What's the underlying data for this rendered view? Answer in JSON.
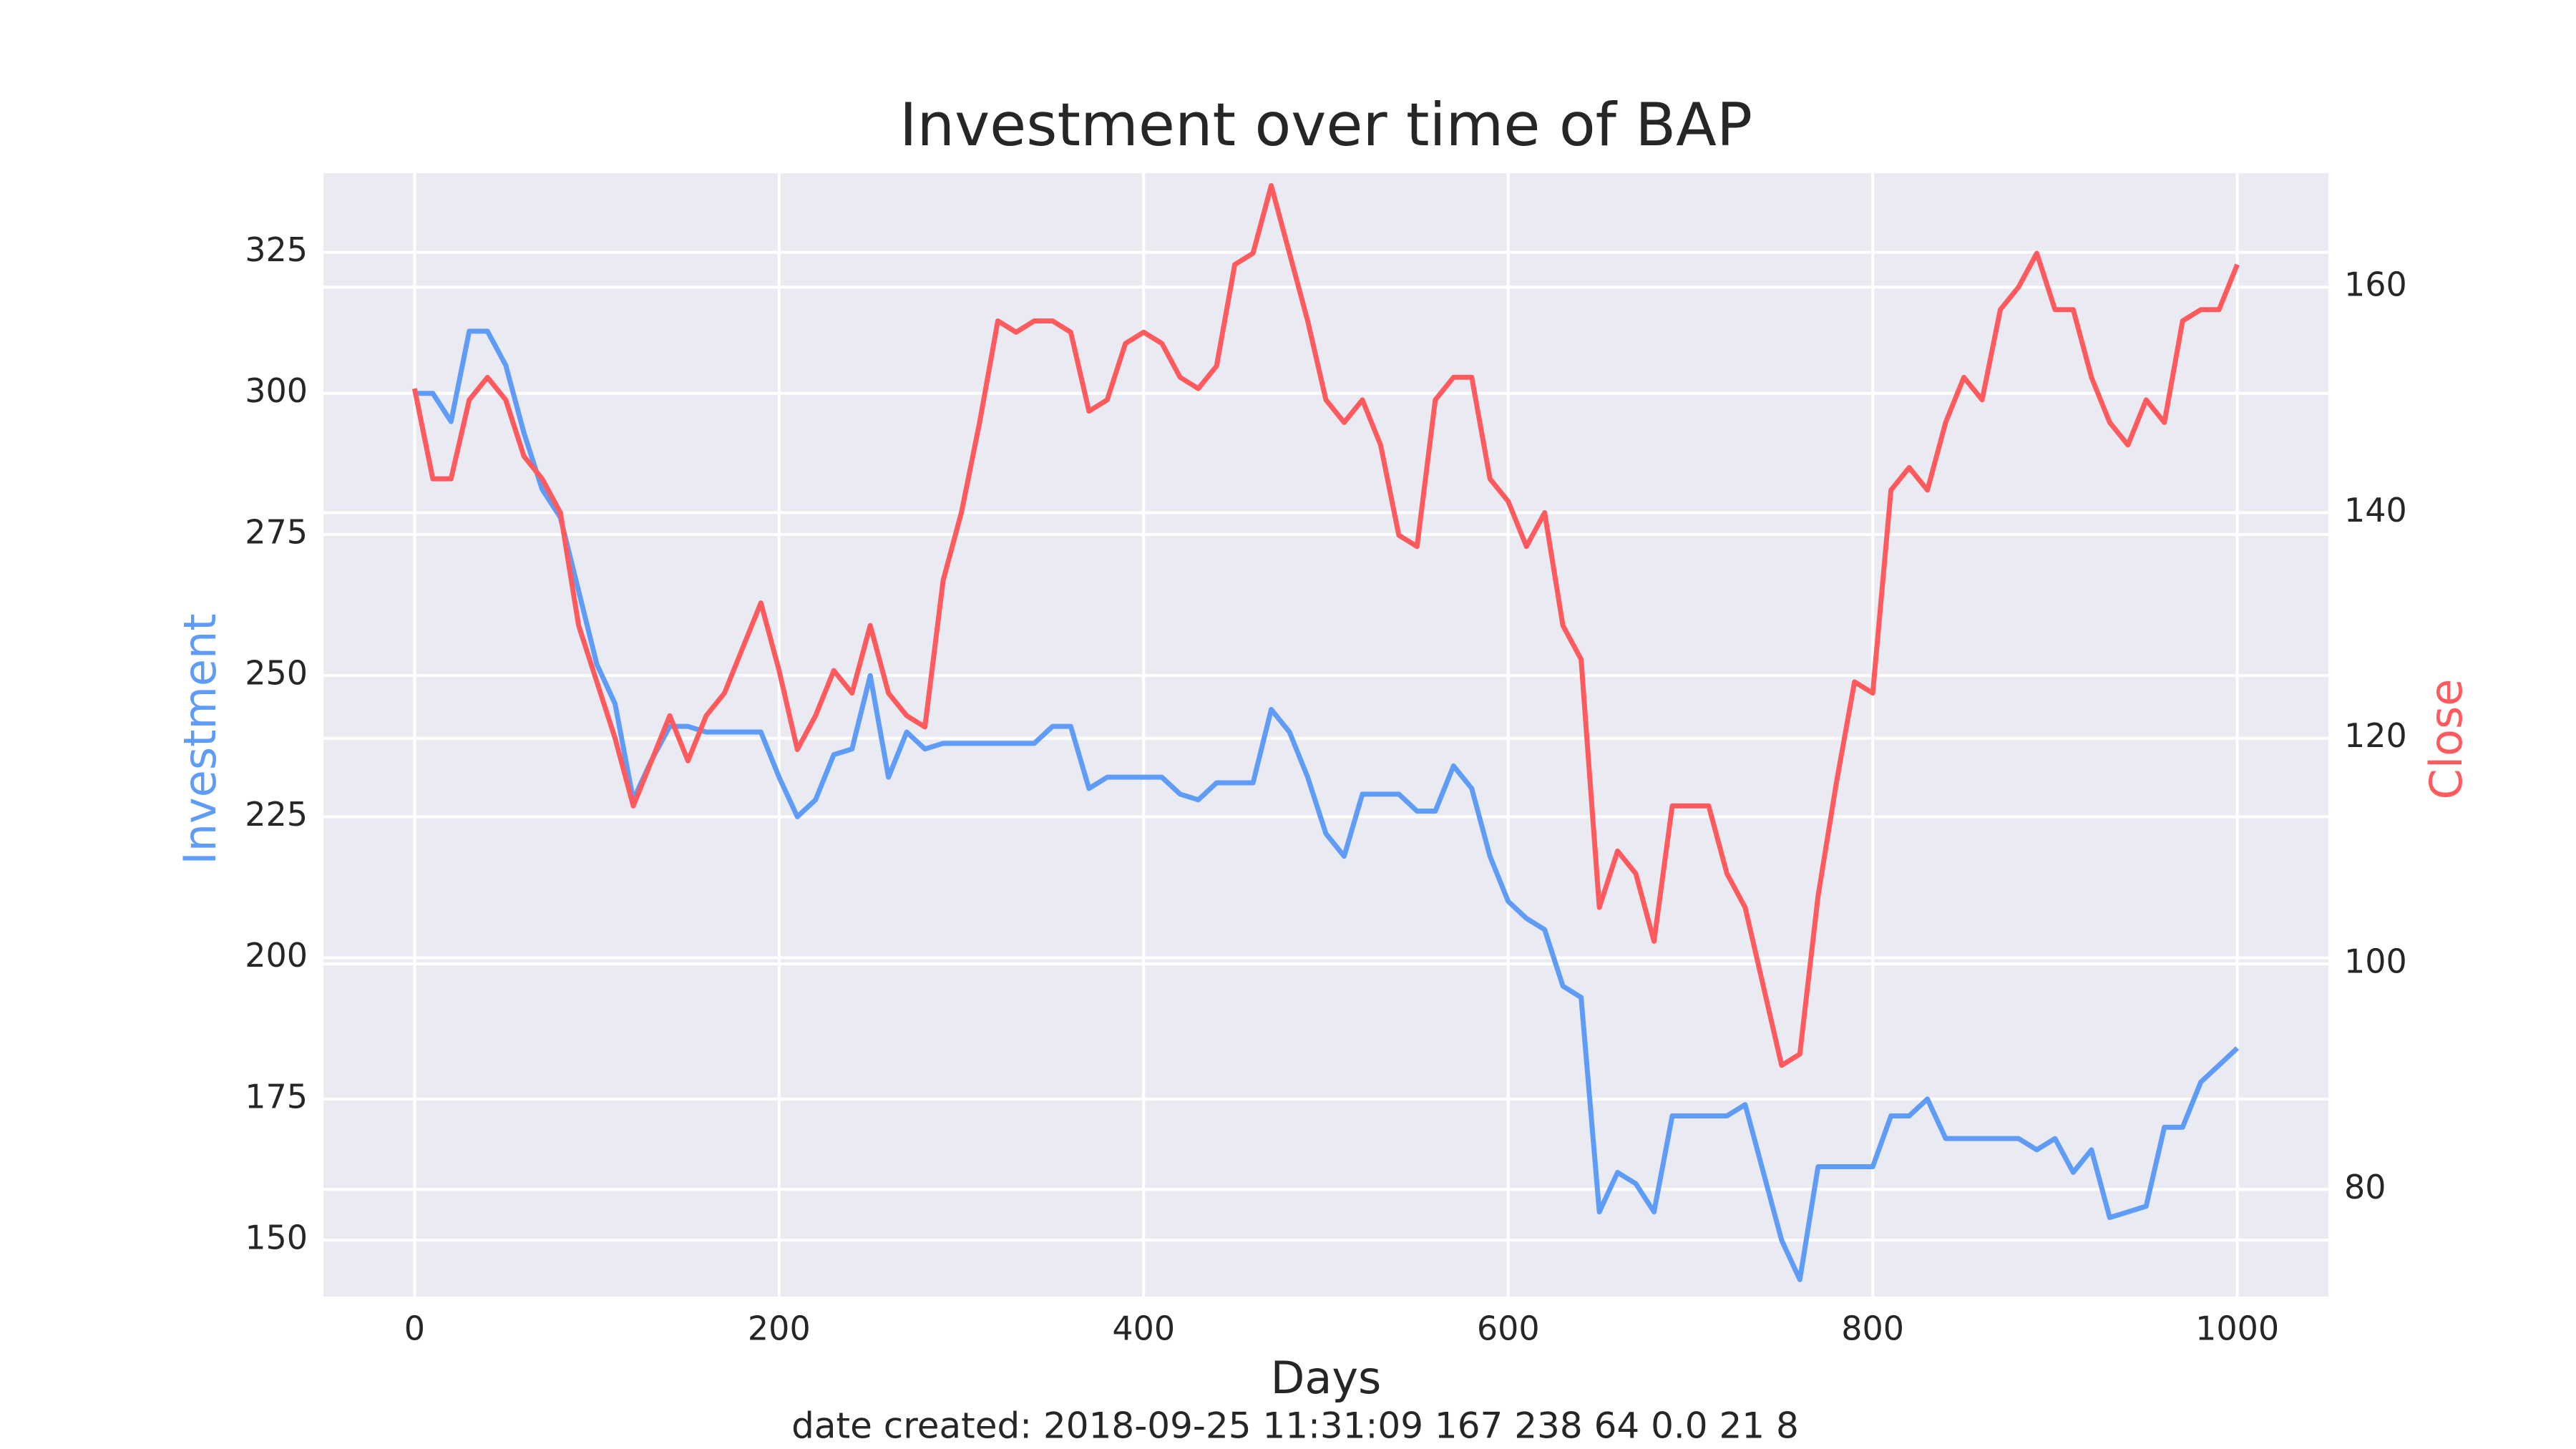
{
  "chart_data": {
    "type": "line",
    "title": "Investment over time of BAP",
    "xlabel": "Days",
    "ylabel": "Investment",
    "y2label": "Close",
    "footnote": "date created: 2018-09-25 11:31:09 167 238 64 0.0 21 8",
    "x": [
      0,
      10,
      20,
      30,
      40,
      50,
      60,
      70,
      80,
      90,
      100,
      110,
      120,
      130,
      140,
      150,
      160,
      170,
      180,
      190,
      200,
      210,
      220,
      230,
      240,
      250,
      260,
      270,
      280,
      290,
      300,
      310,
      320,
      330,
      340,
      350,
      360,
      370,
      380,
      390,
      400,
      410,
      420,
      430,
      440,
      450,
      460,
      470,
      480,
      490,
      500,
      510,
      520,
      530,
      540,
      550,
      560,
      570,
      580,
      590,
      600,
      610,
      620,
      630,
      640,
      650,
      660,
      670,
      680,
      690,
      700,
      710,
      720,
      730,
      740,
      750,
      760,
      770,
      780,
      790,
      800,
      810,
      820,
      830,
      840,
      850,
      860,
      870,
      880,
      890,
      900,
      910,
      920,
      930,
      940,
      950,
      960,
      970,
      980,
      990,
      1000
    ],
    "series": [
      {
        "name": "Investment",
        "color": "#5e9cf7",
        "axis": "y",
        "values": [
          300,
          300,
          295,
          311,
          311,
          305,
          293,
          283,
          278,
          265,
          252,
          245,
          228,
          235,
          241,
          241,
          240,
          240,
          240,
          240,
          232,
          225,
          228,
          236,
          237,
          250,
          232,
          240,
          237,
          238,
          238,
          238,
          238,
          238,
          238,
          241,
          241,
          230,
          232,
          232,
          232,
          232,
          229,
          228,
          231,
          231,
          231,
          244,
          240,
          232,
          222,
          218,
          229,
          229,
          229,
          226,
          226,
          234,
          230,
          218,
          210,
          207,
          205,
          195,
          193,
          155,
          162,
          160,
          155,
          172,
          172,
          172,
          172,
          174,
          162,
          150,
          143,
          163,
          163,
          163,
          163,
          172,
          172,
          175,
          168,
          168,
          168,
          168,
          168,
          166,
          168,
          162,
          166,
          154,
          155,
          156,
          170,
          170,
          178,
          181,
          184
        ]
      },
      {
        "name": "Close",
        "color": "#ff5a5e",
        "axis": "y2",
        "values": [
          151,
          143,
          143,
          150,
          152,
          150,
          145,
          143,
          140,
          130,
          125,
          120,
          114,
          118,
          122,
          118,
          122,
          124,
          128,
          132,
          126,
          119,
          122,
          126,
          124,
          130,
          124,
          122,
          121,
          134,
          140,
          148,
          157,
          156,
          157,
          157,
          156,
          149,
          150,
          155,
          156,
          155,
          152,
          151,
          153,
          162,
          163,
          169,
          163,
          157,
          150,
          148,
          150,
          146,
          138,
          137,
          150,
          152,
          152,
          143,
          141,
          137,
          140,
          130,
          127,
          105,
          110,
          108,
          102,
          114,
          114,
          114,
          108,
          105,
          98,
          91,
          92,
          106,
          116,
          125,
          124,
          142,
          144,
          142,
          148,
          152,
          150,
          158,
          160,
          163,
          158,
          158,
          152,
          148,
          146,
          150,
          148,
          157,
          158,
          158,
          162
        ]
      }
    ],
    "xlim": [
      -50,
      1050
    ],
    "xticks": [
      0,
      200,
      400,
      600,
      800,
      1000
    ],
    "ylim": [
      140,
      339
    ],
    "yticks": [
      150,
      175,
      200,
      225,
      250,
      275,
      300,
      325
    ],
    "y2lim": [
      70.5,
      170.1
    ],
    "y2ticks": [
      80,
      100,
      120,
      140,
      160
    ],
    "grid": true
  }
}
